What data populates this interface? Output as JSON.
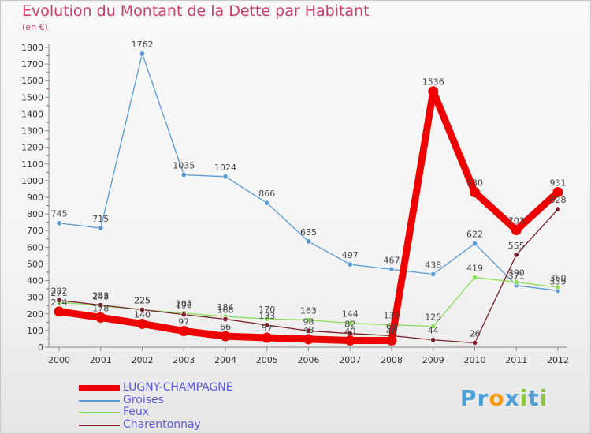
{
  "chart_data": {
    "type": "line",
    "title": "Evolution du Montant de la Dette par Habitant",
    "unit_label": "(en €)",
    "x": [
      "2000",
      "2001",
      "2002",
      "2003",
      "2004",
      "2005",
      "2006",
      "2007",
      "2008",
      "2009",
      "2010",
      "2011",
      "2012"
    ],
    "ylim": [
      0,
      1800
    ],
    "yticks": [
      0,
      100,
      200,
      300,
      400,
      500,
      600,
      700,
      800,
      900,
      1000,
      1100,
      1200,
      1300,
      1400,
      1500,
      1600,
      1700,
      1800
    ],
    "grid": false,
    "legend_position": "bottom-left",
    "series": [
      {
        "name": "LUGNY-CHAMPAGNE",
        "color": "#ee0000",
        "width": 9,
        "values": [
          214,
          178,
          140,
          97,
          66,
          57,
          48,
          40,
          40,
          1536,
          930,
          703,
          931
        ],
        "labels": [
          "214",
          "178",
          "140",
          "97",
          "66",
          "57",
          "48",
          "40",
          "40",
          "1536",
          "930",
          "703",
          "931"
        ]
      },
      {
        "name": "Groises",
        "color": "#5b9bd5",
        "width": 1.3,
        "values": [
          745,
          715,
          1762,
          1035,
          1024,
          866,
          635,
          497,
          467,
          438,
          622,
          371,
          339
        ],
        "labels": [
          "745",
          "715",
          "1762",
          "1035",
          "1024",
          "866",
          "635",
          "497",
          "467",
          "438",
          "622",
          "371",
          "339"
        ]
      },
      {
        "name": "Feux",
        "color": "#88dd55",
        "width": 1.3,
        "values": [
          271,
          248,
          225,
          205,
          184,
          170,
          163,
          144,
          134,
          125,
          419,
          390,
          360
        ],
        "labels": [
          "271",
          "248",
          "225",
          "205",
          "184",
          "170",
          "163",
          "144",
          "134",
          "125",
          "419",
          "390",
          "360"
        ]
      },
      {
        "name": "Charentonnay",
        "color": "#7a1f2b",
        "width": 1.3,
        "values": [
          282,
          253,
          225,
          196,
          168,
          133,
          98,
          82,
          69,
          44,
          26,
          555,
          828
        ],
        "labels": [
          "282",
          "253",
          "225",
          "196",
          "168",
          "133",
          "98",
          "82",
          "69",
          "44",
          "26",
          "555",
          "828"
        ]
      }
    ]
  },
  "logo": {
    "text": "Proxiti",
    "letters": [
      "P",
      "r",
      "o",
      "x",
      "i",
      "t",
      "i"
    ],
    "colors": [
      "#4a9fd8",
      "#4a9fd8",
      "#f39c12",
      "#4a9fd8",
      "#8cc63f",
      "#4a9fd8",
      "#8cc63f"
    ]
  }
}
